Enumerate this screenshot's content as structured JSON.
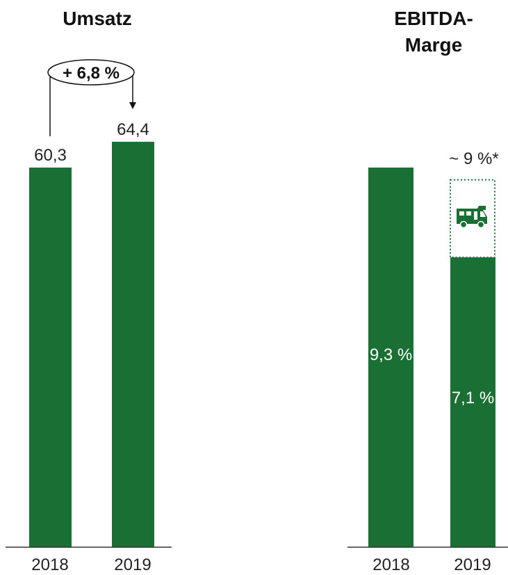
{
  "colors": {
    "bar": "#1a7034",
    "text": "#222222",
    "axis": "#333333"
  },
  "chart_data": [
    {
      "type": "bar",
      "title": "Umsatz",
      "categories": [
        "2018",
        "2019"
      ],
      "values": [
        60.3,
        64.4
      ],
      "value_labels": [
        "60,3",
        "64,4"
      ],
      "growth_label": "+ 6,8 %"
    },
    {
      "type": "bar",
      "title_lines": [
        "EBITDA-",
        "Marge"
      ],
      "categories": [
        "2018",
        "2019"
      ],
      "values": [
        9.3,
        7.1
      ],
      "value_labels": [
        "9,3 %",
        "7,1 %"
      ],
      "target": {
        "value": 9.0,
        "label": "~ 9 %*",
        "icon": "camper-van-icon"
      }
    }
  ]
}
